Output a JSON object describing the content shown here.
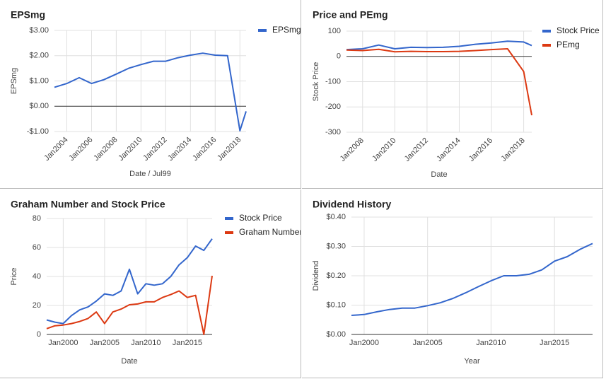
{
  "chart_data": [
    {
      "type": "line",
      "title": "EPSmg",
      "xlabel": "Date / Jul99",
      "ylabel": "EPSmg",
      "x": [
        2003,
        2004,
        2005,
        2006,
        2007,
        2008,
        2009,
        2010,
        2011,
        2012,
        2013,
        2014,
        2015,
        2016,
        2017,
        2018,
        2018.5
      ],
      "series": [
        {
          "name": "EPSmg",
          "color": "#3366cc",
          "values": [
            0.75,
            0.9,
            1.13,
            0.9,
            1.05,
            1.27,
            1.5,
            1.65,
            1.78,
            1.78,
            1.92,
            2.02,
            2.1,
            2.02,
            2.0,
            -0.97,
            -0.2
          ]
        }
      ],
      "xlim": [
        2003,
        2018.5
      ],
      "ylim": [
        -1,
        3
      ],
      "xticks": [
        {
          "value": 2004,
          "label": "Jan2004"
        },
        {
          "value": 2006,
          "label": "Jan2006"
        },
        {
          "value": 2008,
          "label": "Jan2008"
        },
        {
          "value": 2010,
          "label": "Jan2010"
        },
        {
          "value": 2012,
          "label": "Jan2012"
        },
        {
          "value": 2014,
          "label": "Jan2014"
        },
        {
          "value": 2016,
          "label": "Jan2016"
        },
        {
          "value": 2018,
          "label": "Jan2018"
        }
      ],
      "yticks": [
        {
          "value": 3,
          "label": "$3.00"
        },
        {
          "value": 2,
          "label": "$2.00"
        },
        {
          "value": 1,
          "label": "$1.00"
        },
        {
          "value": 0,
          "label": "$0.00"
        },
        {
          "value": -1,
          "label": "-$1.00"
        }
      ],
      "xtick_rotation": 45,
      "grid": true,
      "legend": "right"
    },
    {
      "type": "line",
      "title": "Price and PEmg",
      "xlabel": "Date",
      "ylabel": "Stock Price",
      "x": [
        2007,
        2008,
        2009,
        2010,
        2011,
        2012,
        2013,
        2014,
        2015,
        2016,
        2017,
        2018,
        2018.5
      ],
      "series": [
        {
          "name": "Stock Price",
          "color": "#3366cc",
          "values": [
            27,
            30,
            45,
            30,
            36,
            35,
            36,
            40,
            48,
            53,
            60,
            57,
            43
          ]
        },
        {
          "name": "PEmg",
          "color": "#dc3912",
          "values": [
            25,
            23,
            28,
            18,
            20,
            19,
            19,
            20,
            23,
            27,
            30,
            -60,
            -233
          ]
        }
      ],
      "xlim": [
        2007,
        2018.5
      ],
      "ylim": [
        -300,
        100
      ],
      "xticks": [
        {
          "value": 2008,
          "label": "Jan2008"
        },
        {
          "value": 2010,
          "label": "Jan2010"
        },
        {
          "value": 2012,
          "label": "Jan2012"
        },
        {
          "value": 2014,
          "label": "Jan2014"
        },
        {
          "value": 2016,
          "label": "Jan2016"
        },
        {
          "value": 2018,
          "label": "Jan2018"
        }
      ],
      "yticks": [
        100,
        0,
        -100,
        -200,
        -300
      ],
      "xtick_rotation": 45,
      "grid": true,
      "legend": "right"
    },
    {
      "type": "line",
      "title": "Graham Number and Stock Price",
      "xlabel": "Date",
      "ylabel": "Price",
      "x": [
        1998,
        1999,
        2000,
        2001,
        2002,
        2003,
        2004,
        2005,
        2006,
        2007,
        2008,
        2009,
        2010,
        2011,
        2012,
        2013,
        2014,
        2015,
        2016,
        2017,
        2018
      ],
      "series": [
        {
          "name": "Stock Price",
          "color": "#3366cc",
          "values": [
            10,
            8.5,
            7.5,
            13,
            17,
            19,
            23,
            28,
            27,
            30,
            45,
            28,
            35,
            34,
            35,
            40,
            48,
            53,
            61,
            58,
            66
          ]
        },
        {
          "name": "Graham Number",
          "color": "#dc3912",
          "values": [
            4,
            6,
            6.5,
            7.5,
            9,
            11,
            15.5,
            7.5,
            15.5,
            17.5,
            20.5,
            21,
            22.5,
            22.5,
            25.5,
            27.5,
            30,
            25.5,
            27,
            0,
            40.5
          ]
        }
      ],
      "xlim": [
        1998,
        2018
      ],
      "ylim": [
        0,
        80
      ],
      "xticks": [
        {
          "value": 2000,
          "label": "Jan2000"
        },
        {
          "value": 2005,
          "label": "Jan2005"
        },
        {
          "value": 2010,
          "label": "Jan2010"
        },
        {
          "value": 2015,
          "label": "Jan2015"
        }
      ],
      "yticks": [
        80,
        60,
        40,
        20,
        0
      ],
      "xtick_rotation": 0,
      "grid": true,
      "legend": "right"
    },
    {
      "type": "line",
      "title": "Dividend History",
      "xlabel": "Year",
      "ylabel": "Dividend",
      "x": [
        1999,
        2000,
        2001,
        2002,
        2003,
        2004,
        2005,
        2006,
        2007,
        2008,
        2009,
        2010,
        2011,
        2012,
        2013,
        2014,
        2015,
        2016,
        2017,
        2018
      ],
      "values": [
        0.065,
        0.068,
        0.077,
        0.085,
        0.09,
        0.09,
        0.098,
        0.108,
        0.123,
        0.142,
        0.163,
        0.183,
        0.2,
        0.2,
        0.205,
        0.22,
        0.25,
        0.265,
        0.29,
        0.31
      ],
      "color": "#3366cc",
      "xlim": [
        1999,
        2018
      ],
      "ylim": [
        0,
        0.4
      ],
      "xticks": [
        {
          "value": 2000,
          "label": "Jan2000"
        },
        {
          "value": 2005,
          "label": "Jan2005"
        },
        {
          "value": 2010,
          "label": "Jan2010"
        },
        {
          "value": 2015,
          "label": "Jan2015"
        }
      ],
      "yticks": [
        {
          "value": 0.4,
          "label": "$0.40"
        },
        {
          "value": 0.3,
          "label": "$0.30"
        },
        {
          "value": 0.2,
          "label": "$0.20"
        },
        {
          "value": 0.1,
          "label": "$0.10"
        },
        {
          "value": 0,
          "label": "$0.00"
        }
      ],
      "xtick_rotation": 0,
      "grid": true
    }
  ]
}
